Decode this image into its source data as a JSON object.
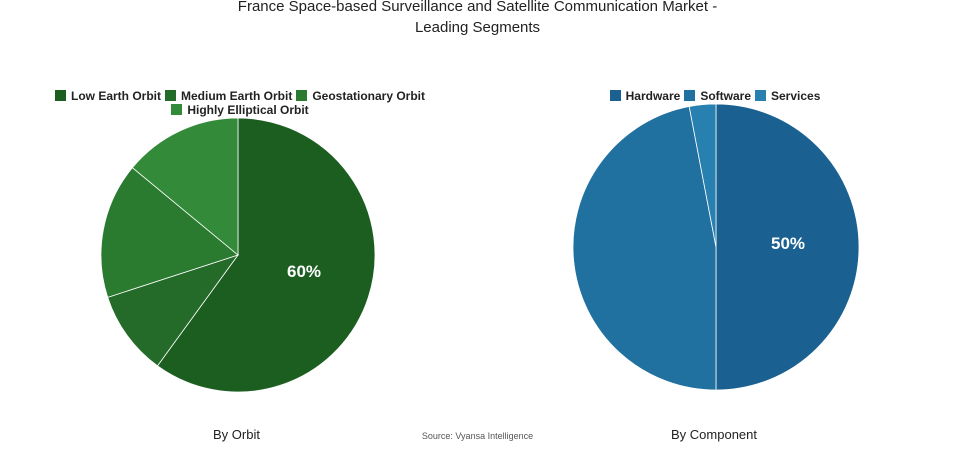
{
  "title_line1": "France Space-based Surveillance and Satellite Communication Market -",
  "title_line2": "Leading Segments",
  "source": "Source: Vyansa Intelligence",
  "chart_data": [
    {
      "type": "pie",
      "caption": "By Orbit",
      "legend_position": "top",
      "categories": [
        "Low Earth Orbit",
        "Medium Earth Orbit",
        "Geostationary Orbit",
        "Highly Elliptical Orbit"
      ],
      "values": [
        60,
        10,
        16,
        14
      ],
      "colors": [
        "#1b5e20",
        "#246b2a",
        "#2a7a30",
        "#338a38"
      ],
      "data_labels": [
        "60%",
        "",
        "",
        ""
      ]
    },
    {
      "type": "pie",
      "caption": "By Component",
      "legend_position": "top",
      "categories": [
        "Hardware",
        "Software",
        "Services"
      ],
      "values": [
        50,
        47,
        3
      ],
      "colors": [
        "#1a6090",
        "#2070a0",
        "#2880b0"
      ],
      "data_labels": [
        "50%",
        "",
        ""
      ]
    }
  ]
}
